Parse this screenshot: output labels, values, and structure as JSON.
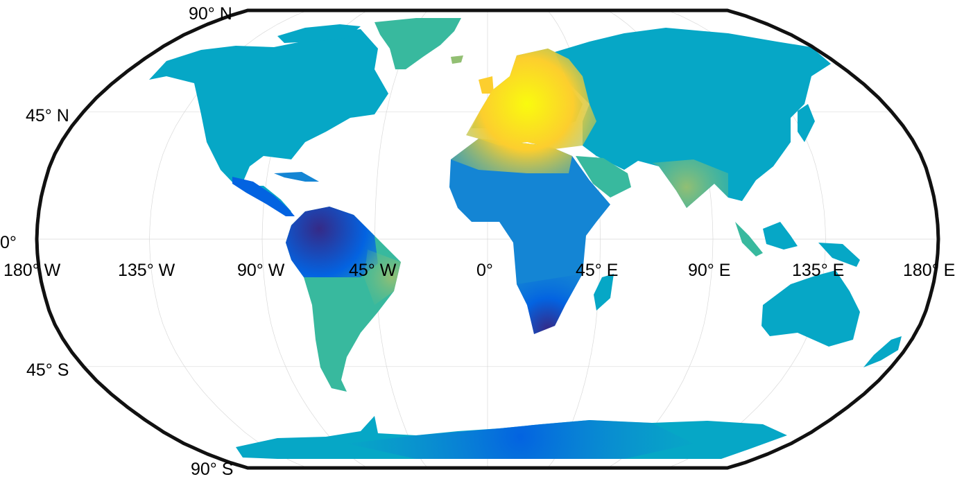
{
  "map": {
    "projection": "robinson",
    "graticule_step_degrees": 45,
    "frame_color": "#111111",
    "grid_color": "#d9d9d9",
    "colormap": "parula",
    "colormap_stops": [
      "#352a87",
      "#0363e1",
      "#1485d4",
      "#06a7c6",
      "#38b99e",
      "#92bf73",
      "#d9ba56",
      "#fcce2e",
      "#f9fb0e"
    ],
    "features": {
      "highest_values_region": "Europe",
      "lowest_values_regions": [
        "northern South America",
        "southern Africa"
      ]
    }
  },
  "labels": {
    "lat": {
      "n90": "90° N",
      "n45": "45° N",
      "eq": "0°",
      "s45": "45° S",
      "s90": "90° S"
    },
    "lon": {
      "w180": "180° W",
      "w135": "135° W",
      "w90": "90° W",
      "w45": "45° W",
      "zero": "0°",
      "e45": "45° E",
      "e90": "90° E",
      "e135": "135° E",
      "e180": "180° E"
    }
  }
}
